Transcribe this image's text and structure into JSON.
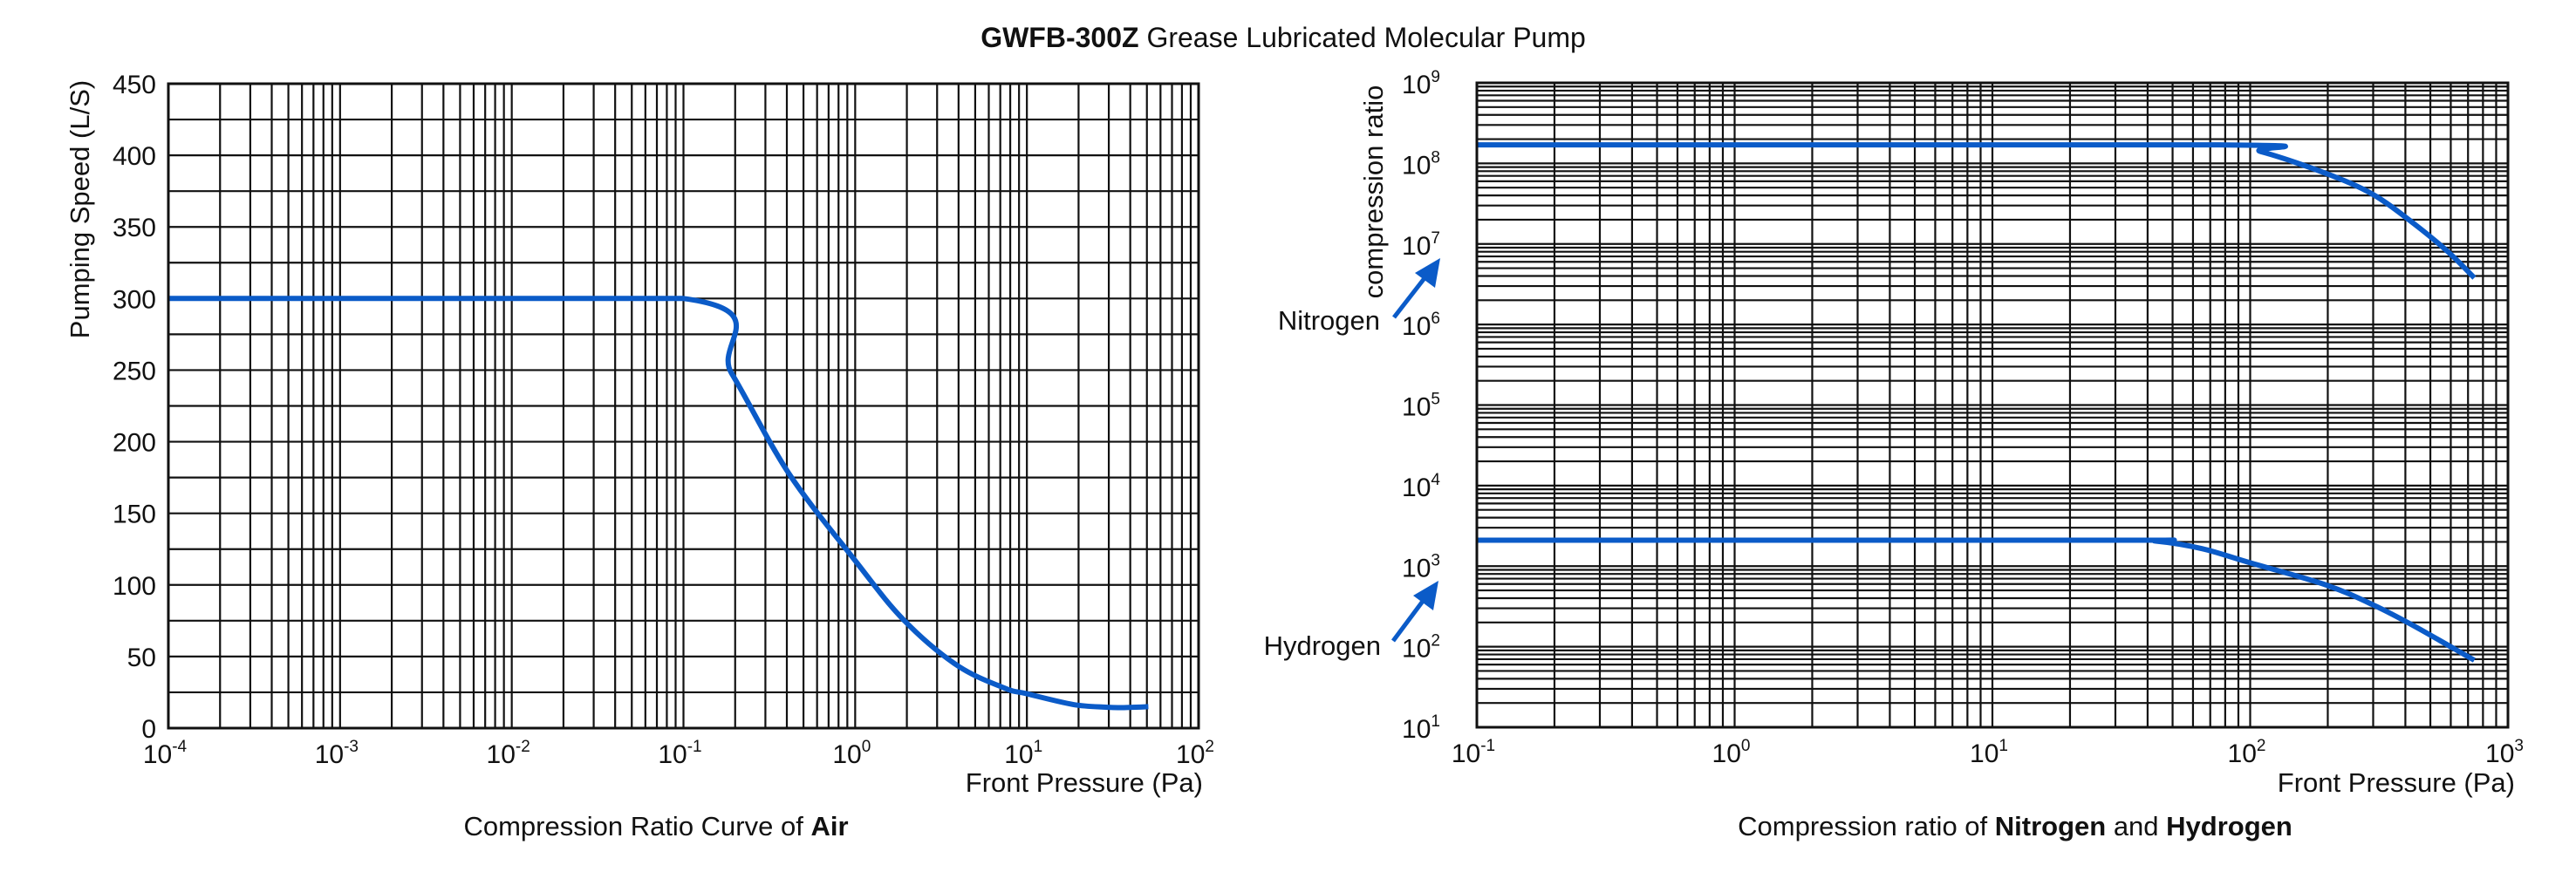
{
  "title": {
    "bold": "GWFB-300Z",
    "rest": " Grease Lubricated Molecular Pump"
  },
  "chart_data": [
    {
      "id": "air",
      "type": "line",
      "title": "",
      "caption": {
        "prefix": "Compression Ratio Curve of ",
        "bold": "Air"
      },
      "xlabel": "Front Pressure (Pa)",
      "ylabel": "Pumping Speed (L/S)",
      "xscale": "log",
      "yscale": "linear",
      "xlim": [
        0.0001,
        100
      ],
      "ylim": [
        0,
        450
      ],
      "grid": true,
      "x_tick_labels": [
        {
          "base": "10",
          "exp": "-4",
          "value": 0.0001
        },
        {
          "base": "10",
          "exp": "-3",
          "value": 0.001
        },
        {
          "base": "10",
          "exp": "-2",
          "value": 0.01
        },
        {
          "base": "10",
          "exp": "-1",
          "value": 0.1
        },
        {
          "base": "10",
          "exp": "0",
          "value": 1
        },
        {
          "base": "10",
          "exp": "1",
          "value": 10
        },
        {
          "base": "10",
          "exp": "2",
          "value": 100
        }
      ],
      "y_tick_labels": [
        "0",
        "50",
        "100",
        "150",
        "200",
        "250",
        "300",
        "350",
        "400",
        "450"
      ],
      "y_ticks": [
        0,
        50,
        100,
        150,
        200,
        250,
        300,
        350,
        400,
        450
      ],
      "y_minor_step": 25,
      "series": [
        {
          "name": "Air",
          "color": "#0b5bc8",
          "points": [
            [
              0.0001,
              300
            ],
            [
              0.1,
              300
            ],
            [
              0.19,
              248
            ],
            [
              0.41,
              178
            ],
            [
              1.0,
              117
            ],
            [
              1.9,
              76
            ],
            [
              3.9,
              44
            ],
            [
              7.4,
              28
            ],
            [
              10,
              24
            ],
            [
              18.6,
              16.5
            ],
            [
              29,
              14.6
            ],
            [
              35,
              14.3
            ],
            [
              51,
              15
            ]
          ]
        }
      ]
    },
    {
      "id": "n2-h2",
      "type": "line",
      "title": "",
      "caption": {
        "prefix": "Compression ratio of ",
        "bold1": "Nitrogen",
        "mid": " and ",
        "bold2": "Hydrogen"
      },
      "xlabel": "Front Pressure (Pa)",
      "ylabel": "compression ratio",
      "xscale": "log",
      "yscale": "log",
      "xlim": [
        0.1,
        1000
      ],
      "ylim": [
        10,
        1000000000
      ],
      "grid": true,
      "x_tick_labels": [
        {
          "base": "10",
          "exp": "-1",
          "value": 0.1
        },
        {
          "base": "10",
          "exp": "0",
          "value": 1
        },
        {
          "base": "10",
          "exp": "1",
          "value": 10
        },
        {
          "base": "10",
          "exp": "2",
          "value": 100
        },
        {
          "base": "10",
          "exp": "3",
          "value": 1000
        }
      ],
      "y_tick_labels": [
        {
          "base": "10",
          "exp": "1",
          "value": 10
        },
        {
          "base": "10",
          "exp": "2",
          "value": 100
        },
        {
          "base": "10",
          "exp": "3",
          "value": 1000
        },
        {
          "base": "10",
          "exp": "4",
          "value": 10000
        },
        {
          "base": "10",
          "exp": "5",
          "value": 100000
        },
        {
          "base": "10",
          "exp": "6",
          "value": 1000000
        },
        {
          "base": "10",
          "exp": "7",
          "value": 10000000
        },
        {
          "base": "10",
          "exp": "8",
          "value": 100000000
        },
        {
          "base": "10",
          "exp": "9",
          "value": 1000000000
        }
      ],
      "annotations": [
        {
          "text": "Nitrogen",
          "color": "#0b5bc8",
          "points_to_series": "Nitrogen"
        },
        {
          "text": "Hydrogen",
          "color": "#0b5bc8",
          "points_to_series": "Hydrogen"
        }
      ],
      "series": [
        {
          "name": "Nitrogen",
          "color": "#0b5bc8",
          "points": [
            [
              0.1,
              170000000
            ],
            [
              76,
              170000000
            ],
            [
              110,
              140000000
            ],
            [
              195,
              76000000
            ],
            [
              300,
              41000000
            ],
            [
              436,
              17400000
            ],
            [
              590,
              7800000
            ],
            [
              740,
              3800000
            ]
          ]
        },
        {
          "name": "Hydrogen",
          "color": "#0b5bc8",
          "points": [
            [
              0.1,
              2100
            ],
            [
              30,
              2100
            ],
            [
              43,
              2050
            ],
            [
              65,
              1650
            ],
            [
              100,
              1100
            ],
            [
              195,
              590
            ],
            [
              300,
              330
            ],
            [
              436,
              178
            ],
            [
              740,
              68
            ]
          ]
        }
      ]
    }
  ]
}
